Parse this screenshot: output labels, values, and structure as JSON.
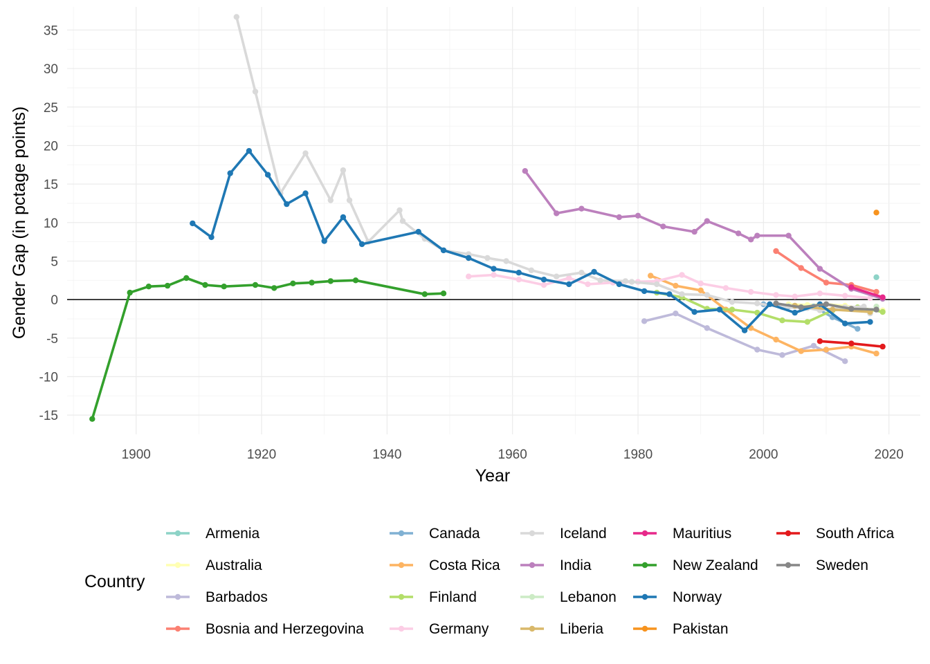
{
  "chart_data": {
    "type": "line",
    "title": "",
    "xlabel": "Year",
    "ylabel": "Gender Gap (in pctage points)",
    "xlim": [
      1889,
      2025
    ],
    "ylim": [
      -17.5,
      38
    ],
    "x_ticks": [
      1900,
      1920,
      1940,
      1960,
      1980,
      2000,
      2020
    ],
    "y_ticks": [
      -15,
      -10,
      -5,
      0,
      5,
      10,
      15,
      20,
      25,
      30,
      35
    ],
    "grid": true,
    "reference_line_y": 0,
    "legend": {
      "title": "Country",
      "position": "bottom"
    },
    "series": [
      {
        "name": "Armenia",
        "color": "#8DD3C7",
        "points": [
          [
            2018,
            2.9
          ]
        ]
      },
      {
        "name": "Australia",
        "color": "#FFFFB3",
        "points": [
          [
            2004,
            -0.6
          ],
          [
            2007,
            -0.7
          ],
          [
            2010,
            -0.6
          ],
          [
            2013,
            -0.8
          ],
          [
            2016,
            -1.2
          ],
          [
            2019,
            -1.4
          ]
        ]
      },
      {
        "name": "Barbados",
        "color": "#BEBADA",
        "points": [
          [
            1981,
            -2.8
          ],
          [
            1986,
            -1.8
          ],
          [
            1991,
            -3.7
          ],
          [
            1999,
            -6.5
          ],
          [
            2003,
            -7.2
          ],
          [
            2008,
            -6.0
          ],
          [
            2013,
            -8.0
          ]
        ]
      },
      {
        "name": "Bosnia and Herzegovina",
        "color": "#FB8072",
        "points": [
          [
            2002,
            6.3
          ],
          [
            2006,
            4.1
          ],
          [
            2010,
            2.2
          ],
          [
            2014,
            1.9
          ],
          [
            2018,
            1.0
          ]
        ]
      },
      {
        "name": "Canada",
        "color": "#80B1D3",
        "points": [
          [
            2000,
            -0.6
          ],
          [
            2004,
            -0.9
          ],
          [
            2006,
            -1.0
          ],
          [
            2008,
            -0.9
          ],
          [
            2011,
            -2.3
          ],
          [
            2015,
            -3.8
          ]
        ]
      },
      {
        "name": "Costa Rica",
        "color": "#FDB462",
        "points": [
          [
            1982,
            3.1
          ],
          [
            1986,
            1.8
          ],
          [
            1990,
            1.2
          ],
          [
            1994,
            -1.3
          ],
          [
            1998,
            -3.7
          ],
          [
            2002,
            -5.2
          ],
          [
            2006,
            -6.7
          ],
          [
            2010,
            -6.5
          ],
          [
            2014,
            -6.1
          ],
          [
            2018,
            -7.0
          ]
        ]
      },
      {
        "name": "Finland",
        "color": "#B3DE69",
        "points": [
          [
            1983,
            0.9
          ],
          [
            1987,
            0.3
          ],
          [
            1991,
            -1.2
          ],
          [
            1995,
            -1.3
          ],
          [
            1999,
            -1.7
          ],
          [
            2003,
            -2.7
          ],
          [
            2007,
            -2.9
          ],
          [
            2011,
            -1.4
          ],
          [
            2015,
            -1.0
          ],
          [
            2019,
            -1.6
          ]
        ]
      },
      {
        "name": "Germany",
        "color": "#FCCDE5",
        "points": [
          [
            1953,
            3.0
          ],
          [
            1957,
            3.2
          ],
          [
            1961,
            2.6
          ],
          [
            1965,
            1.9
          ],
          [
            1969,
            2.8
          ],
          [
            1972,
            2.0
          ],
          [
            1976,
            2.2
          ],
          [
            1980,
            2.3
          ],
          [
            1983,
            2.4
          ],
          [
            1987,
            3.2
          ],
          [
            1990,
            2.1
          ],
          [
            1994,
            1.5
          ],
          [
            1998,
            1.0
          ],
          [
            2002,
            0.6
          ],
          [
            2005,
            0.4
          ],
          [
            2009,
            0.8
          ],
          [
            2013,
            0.5
          ],
          [
            2017,
            0.2
          ]
        ]
      },
      {
        "name": "Iceland",
        "color": "#D9D9D9",
        "points": [
          [
            1916,
            36.7
          ],
          [
            1919,
            27.0
          ],
          [
            1923,
            13.8
          ],
          [
            1927,
            19.0
          ],
          [
            1931,
            12.9
          ],
          [
            1933,
            16.8
          ],
          [
            1934,
            12.9
          ],
          [
            1937,
            7.5
          ],
          [
            1942,
            11.6
          ],
          [
            1942.5,
            10.2
          ],
          [
            1946,
            7.9
          ],
          [
            1949,
            6.4
          ],
          [
            1953,
            5.9
          ],
          [
            1956,
            5.4
          ],
          [
            1959,
            5.0
          ],
          [
            1963,
            3.8
          ],
          [
            1967,
            3.0
          ],
          [
            1971,
            3.5
          ],
          [
            1974,
            2.5
          ],
          [
            1978,
            2.4
          ],
          [
            1979,
            2.3
          ],
          [
            1983,
            2.0
          ],
          [
            1987,
            0.7
          ],
          [
            1991,
            0.6
          ],
          [
            1995,
            -0.3
          ],
          [
            1999,
            -0.5
          ],
          [
            2003,
            -1.0
          ],
          [
            2007,
            -1.1
          ],
          [
            2009,
            -1.4
          ],
          [
            2013,
            -1.0
          ],
          [
            2016,
            -0.9
          ],
          [
            2017,
            -1.8
          ]
        ]
      },
      {
        "name": "India",
        "color": "#BC80BD",
        "points": [
          [
            1962,
            16.7
          ],
          [
            1967,
            11.2
          ],
          [
            1971,
            11.8
          ],
          [
            1977,
            10.7
          ],
          [
            1980,
            10.9
          ],
          [
            1984,
            9.5
          ],
          [
            1989,
            8.8
          ],
          [
            1991,
            10.2
          ],
          [
            1996,
            8.6
          ],
          [
            1998,
            7.8
          ],
          [
            1999,
            8.3
          ],
          [
            2004,
            8.3
          ],
          [
            2009,
            4.0
          ],
          [
            2014,
            1.4
          ],
          [
            2019,
            0.1
          ]
        ]
      },
      {
        "name": "Lebanon",
        "color": "#CCEBC5",
        "points": [
          [
            2018,
            -0.9
          ]
        ]
      },
      {
        "name": "Liberia",
        "color": "#D9B86A",
        "points": [
          [
            2005,
            -0.8
          ],
          [
            2011,
            -1.3
          ],
          [
            2017,
            -1.6
          ]
        ]
      },
      {
        "name": "Mauritius",
        "color": "#E7298A",
        "points": [
          [
            2014,
            1.6
          ],
          [
            2019,
            0.3
          ]
        ]
      },
      {
        "name": "New Zealand",
        "color": "#33A02C",
        "points": [
          [
            1893,
            -15.5
          ],
          [
            1899,
            0.9
          ],
          [
            1902,
            1.7
          ],
          [
            1905,
            1.8
          ],
          [
            1908,
            2.8
          ],
          [
            1911,
            1.9
          ],
          [
            1914,
            1.7
          ],
          [
            1919,
            1.9
          ],
          [
            1922,
            1.5
          ],
          [
            1925,
            2.1
          ],
          [
            1928,
            2.2
          ],
          [
            1931,
            2.4
          ],
          [
            1935,
            2.5
          ],
          [
            1946,
            0.7
          ],
          [
            1949,
            0.8
          ]
        ]
      },
      {
        "name": "Norway",
        "color": "#1F78B4",
        "points": [
          [
            1909,
            9.9
          ],
          [
            1912,
            8.1
          ],
          [
            1915,
            16.4
          ],
          [
            1918,
            19.3
          ],
          [
            1921,
            16.2
          ],
          [
            1924,
            12.4
          ],
          [
            1927,
            13.8
          ],
          [
            1930,
            7.6
          ],
          [
            1933,
            10.7
          ],
          [
            1936,
            7.2
          ],
          [
            1945,
            8.8
          ],
          [
            1949,
            6.4
          ],
          [
            1953,
            5.4
          ],
          [
            1957,
            4.0
          ],
          [
            1961,
            3.5
          ],
          [
            1965,
            2.6
          ],
          [
            1969,
            2.0
          ],
          [
            1973,
            3.6
          ],
          [
            1977,
            2.0
          ],
          [
            1981,
            1.1
          ],
          [
            1985,
            0.7
          ],
          [
            1989,
            -1.6
          ],
          [
            1993,
            -1.3
          ],
          [
            1997,
            -4.0
          ],
          [
            2001,
            -0.6
          ],
          [
            2005,
            -1.7
          ],
          [
            2009,
            -0.6
          ],
          [
            2013,
            -3.1
          ],
          [
            2017,
            -2.9
          ]
        ]
      },
      {
        "name": "Pakistan",
        "color": "#F7931E",
        "points": [
          [
            2018,
            11.3
          ]
        ]
      },
      {
        "name": "South Africa",
        "color": "#E31A1C",
        "points": [
          [
            2009,
            -5.4
          ],
          [
            2014,
            -5.7
          ],
          [
            2019,
            -6.1
          ]
        ]
      },
      {
        "name": "Sweden",
        "color": "#878787",
        "points": [
          [
            2002,
            -0.5
          ],
          [
            2006,
            -1.0
          ],
          [
            2010,
            -0.6
          ],
          [
            2014,
            -1.2
          ],
          [
            2018,
            -1.3
          ]
        ]
      }
    ]
  }
}
